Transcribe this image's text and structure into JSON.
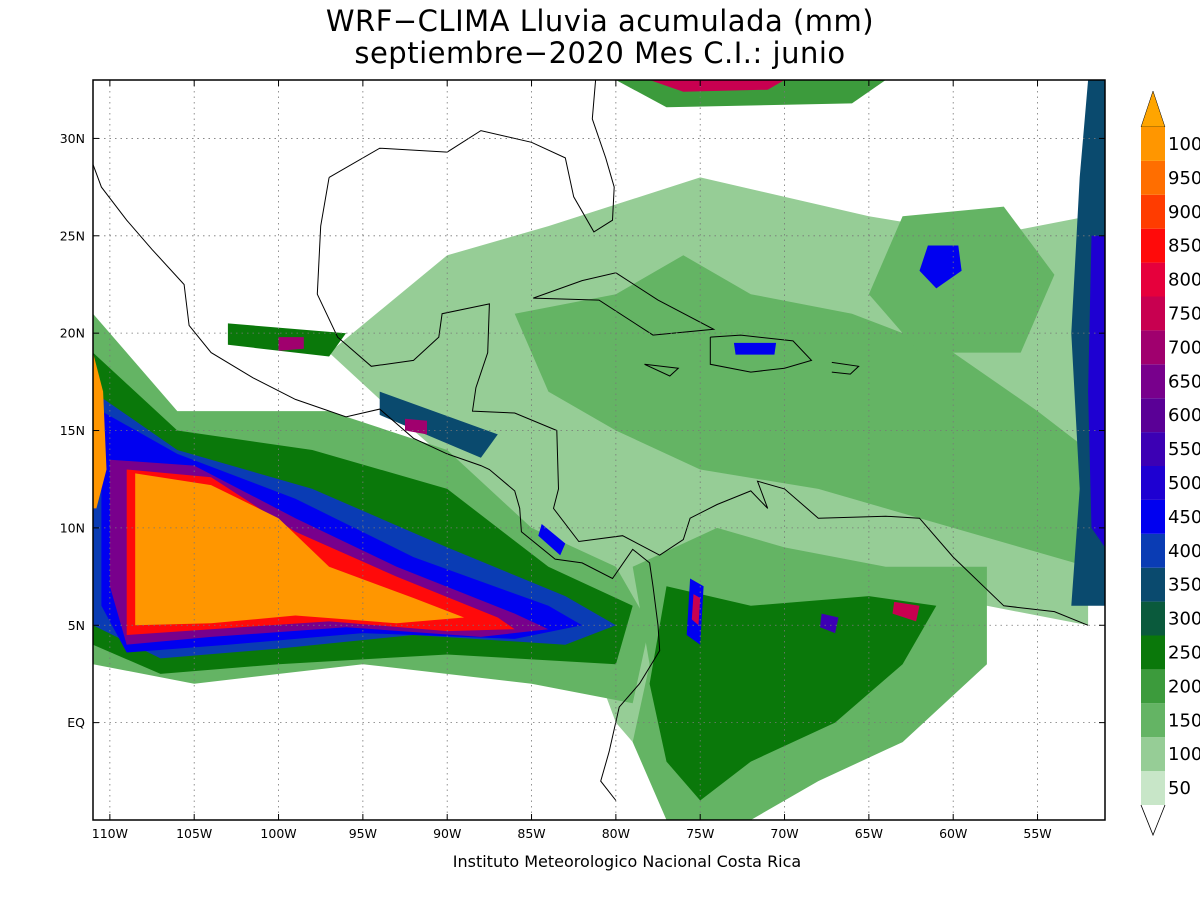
{
  "title": {
    "line1": "WRF−CLIMA Lluvia acumulada (mm)",
    "line2": "septiembre−2020 Mes C.I.: junio"
  },
  "credit": "Instituto Meteorologico Nacional Costa Rica",
  "map": {
    "lon_range": [
      -111,
      -51
    ],
    "lat_range": [
      -5,
      33
    ],
    "lat_ticks": [
      {
        "label": "30N",
        "value": 30
      },
      {
        "label": "25N",
        "value": 25
      },
      {
        "label": "20N",
        "value": 20
      },
      {
        "label": "15N",
        "value": 15
      },
      {
        "label": "10N",
        "value": 10
      },
      {
        "label": "5N",
        "value": 5
      },
      {
        "label": "EQ",
        "value": 0
      }
    ],
    "lon_ticks": [
      {
        "label": "110W",
        "value": -110
      },
      {
        "label": "105W",
        "value": -105
      },
      {
        "label": "100W",
        "value": -100
      },
      {
        "label": "95W",
        "value": -95
      },
      {
        "label": "90W",
        "value": -90
      },
      {
        "label": "85W",
        "value": -85
      },
      {
        "label": "80W",
        "value": -80
      },
      {
        "label": "75W",
        "value": -75
      },
      {
        "label": "70W",
        "value": -70
      },
      {
        "label": "65W",
        "value": -65
      },
      {
        "label": "60W",
        "value": -60
      },
      {
        "label": "55W",
        "value": -55
      }
    ]
  },
  "colorbar": {
    "levels": [
      {
        "label": "50",
        "color": "#c8e6c8"
      },
      {
        "label": "100",
        "color": "#96cd96"
      },
      {
        "label": "150",
        "color": "#64b464"
      },
      {
        "label": "200",
        "color": "#3c9b3c"
      },
      {
        "label": "250",
        "color": "#0a780a"
      },
      {
        "label": "300",
        "color": "#0a5a3c"
      },
      {
        "label": "350",
        "color": "#0a4a6e"
      },
      {
        "label": "400",
        "color": "#0a3cb4"
      },
      {
        "label": "450",
        "color": "#0000f0"
      },
      {
        "label": "500",
        "color": "#1e00d2"
      },
      {
        "label": "550",
        "color": "#3c00b4"
      },
      {
        "label": "600",
        "color": "#5a0096"
      },
      {
        "label": "650",
        "color": "#78008c"
      },
      {
        "label": "700",
        "color": "#a0006e"
      },
      {
        "label": "750",
        "color": "#c80050"
      },
      {
        "label": "800",
        "color": "#e6003c"
      },
      {
        "label": "850",
        "color": "#ff0a0a"
      },
      {
        "label": "900",
        "color": "#ff3c00"
      },
      {
        "label": "950",
        "color": "#ff6e00"
      },
      {
        "label": "1000",
        "color": "#ff9600"
      }
    ],
    "over_color": "#ffa500",
    "under_color": "#ffffff"
  },
  "fields": [
    {
      "name": "itcz-band-pacific",
      "level": 2,
      "pts": [
        [
          -111,
          21
        ],
        [
          -106,
          16
        ],
        [
          -97,
          16
        ],
        [
          -90,
          14
        ],
        [
          -85,
          10
        ],
        [
          -80,
          8
        ],
        [
          -78,
          5
        ],
        [
          -79,
          1
        ],
        [
          -85,
          2
        ],
        [
          -95,
          3
        ],
        [
          -105,
          2
        ],
        [
          -111,
          3
        ]
      ]
    },
    {
      "name": "itcz-200",
      "level": 4,
      "pts": [
        [
          -111,
          19
        ],
        [
          -106,
          15
        ],
        [
          -98,
          14
        ],
        [
          -90,
          12
        ],
        [
          -84,
          8
        ],
        [
          -79,
          6
        ],
        [
          -80,
          3
        ],
        [
          -90,
          3.5
        ],
        [
          -100,
          3
        ],
        [
          -107,
          2.5
        ],
        [
          -111,
          4
        ]
      ]
    },
    {
      "name": "itcz-350",
      "level": 7,
      "pts": [
        [
          -111,
          17
        ],
        [
          -106,
          14
        ],
        [
          -98,
          12
        ],
        [
          -90,
          9
        ],
        [
          -83,
          6.5
        ],
        [
          -80,
          5
        ],
        [
          -83,
          4
        ],
        [
          -92,
          4.5
        ],
        [
          -100,
          3.8
        ],
        [
          -107,
          3.3
        ],
        [
          -111,
          5
        ]
      ]
    },
    {
      "name": "itcz-450",
      "level": 8,
      "pts": [
        [
          -110.5,
          16
        ],
        [
          -106,
          13.8
        ],
        [
          -99,
          11.5
        ],
        [
          -92,
          8.5
        ],
        [
          -84,
          6
        ],
        [
          -82,
          5
        ],
        [
          -86,
          4.3
        ],
        [
          -95,
          4.6
        ],
        [
          -103,
          4
        ],
        [
          -109,
          3.6
        ],
        [
          -110.5,
          6
        ]
      ]
    },
    {
      "name": "itcz-650",
      "level": 12,
      "pts": [
        [
          -110,
          13.5
        ],
        [
          -105,
          13.2
        ],
        [
          -99,
          10.5
        ],
        [
          -93,
          8
        ],
        [
          -86,
          5.6
        ],
        [
          -84,
          4.8
        ],
        [
          -88,
          4.4
        ],
        [
          -96,
          4.9
        ],
        [
          -104,
          4.4
        ],
        [
          -109,
          4
        ],
        [
          -110,
          7
        ]
      ]
    },
    {
      "name": "itcz-850",
      "level": 16,
      "pts": [
        [
          -109,
          13
        ],
        [
          -104,
          12.6
        ],
        [
          -99,
          9.8
        ],
        [
          -93,
          7.5
        ],
        [
          -87,
          5.4
        ],
        [
          -86,
          4.8
        ],
        [
          -90,
          4.7
        ],
        [
          -97,
          5.2
        ],
        [
          -104,
          4.8
        ],
        [
          -109,
          4.5
        ]
      ]
    },
    {
      "name": "itcz-1000",
      "level": 19,
      "pts": [
        [
          -108.5,
          12.8
        ],
        [
          -104,
          12.2
        ],
        [
          -100,
          10.5
        ],
        [
          -97,
          8
        ],
        [
          -92,
          6.4
        ],
        [
          -89,
          5.4
        ],
        [
          -93,
          5.1
        ],
        [
          -99,
          5.5
        ],
        [
          -104,
          5.1
        ],
        [
          -108.5,
          5
        ]
      ]
    },
    {
      "name": "west-edge-max",
      "level": 19,
      "pts": [
        [
          -111,
          19
        ],
        [
          -110.4,
          17
        ],
        [
          -110.2,
          13
        ],
        [
          -110.8,
          11
        ],
        [
          -111,
          11
        ]
      ]
    },
    {
      "name": "caribbean-broad",
      "level": 1,
      "pts": [
        [
          -90,
          24
        ],
        [
          -84,
          25.5
        ],
        [
          -75,
          28
        ],
        [
          -65,
          26
        ],
        [
          -58,
          25
        ],
        [
          -52,
          26
        ],
        [
          -52,
          5
        ],
        [
          -58,
          6
        ],
        [
          -66,
          3
        ],
        [
          -70,
          -2
        ],
        [
          -75,
          -5
        ],
        [
          -80,
          0
        ],
        [
          -83,
          7
        ],
        [
          -88,
          12
        ],
        [
          -92,
          15
        ],
        [
          -97,
          19
        ]
      ]
    },
    {
      "name": "caribbean-150",
      "level": 2,
      "pts": [
        [
          -86,
          21
        ],
        [
          -80,
          22
        ],
        [
          -76,
          24
        ],
        [
          -72,
          22
        ],
        [
          -66,
          21
        ],
        [
          -60,
          19
        ],
        [
          -55,
          16
        ],
        [
          -52,
          14
        ],
        [
          -52,
          8
        ],
        [
          -60,
          10
        ],
        [
          -68,
          12
        ],
        [
          -75,
          13
        ],
        [
          -80,
          15
        ],
        [
          -84,
          17
        ]
      ]
    },
    {
      "name": "south-america-150",
      "level": 2,
      "pts": [
        [
          -79,
          8
        ],
        [
          -74,
          10
        ],
        [
          -70,
          9
        ],
        [
          -64,
          8
        ],
        [
          -58,
          8
        ],
        [
          -58,
          3
        ],
        [
          -63,
          -1
        ],
        [
          -68,
          -3
        ],
        [
          -72,
          -5
        ],
        [
          -77,
          -5
        ],
        [
          -79,
          -1
        ],
        [
          -78,
          3
        ]
      ]
    },
    {
      "name": "south-america-250",
      "level": 4,
      "pts": [
        [
          -77,
          7
        ],
        [
          -72,
          6
        ],
        [
          -65,
          6.5
        ],
        [
          -61,
          6
        ],
        [
          -63,
          3
        ],
        [
          -67,
          0
        ],
        [
          -72,
          -2
        ],
        [
          -75,
          -4
        ],
        [
          -77,
          -2
        ],
        [
          -78,
          2
        ]
      ]
    },
    {
      "name": "atlantic-east-edge",
      "level": 6,
      "pts": [
        [
          -52,
          33
        ],
        [
          -51,
          33
        ],
        [
          -51,
          6
        ],
        [
          -53,
          6
        ],
        [
          -52.5,
          12
        ],
        [
          -53,
          20
        ],
        [
          -52.5,
          28
        ]
      ]
    },
    {
      "name": "atlantic-east-max",
      "level": 9,
      "pts": [
        [
          -51.8,
          25
        ],
        [
          -51,
          25
        ],
        [
          -51,
          9
        ],
        [
          -51.8,
          10
        ],
        [
          -52,
          17
        ]
      ]
    },
    {
      "name": "atlantic-north-east",
      "level": 2,
      "pts": [
        [
          -63,
          26
        ],
        [
          -57,
          26.5
        ],
        [
          -54,
          23
        ],
        [
          -56,
          19
        ],
        [
          -62,
          19
        ],
        [
          -65,
          22
        ]
      ]
    },
    {
      "name": "atlantic-north-east-core",
      "level": 8,
      "pts": [
        [
          -61.5,
          24.5
        ],
        [
          -59.7,
          24.5
        ],
        [
          -59.5,
          23.2
        ],
        [
          -61,
          22.3
        ],
        [
          -62,
          23.2
        ]
      ]
    },
    {
      "name": "north-edge-red",
      "level": 14,
      "pts": [
        [
          -78,
          33
        ],
        [
          -70,
          33
        ],
        [
          -71,
          32.5
        ],
        [
          -76,
          32.4
        ]
      ]
    },
    {
      "name": "north-edge-green",
      "level": 3,
      "pts": [
        [
          -80,
          33
        ],
        [
          -64,
          33
        ],
        [
          -66,
          31.8
        ],
        [
          -77,
          31.6
        ]
      ]
    },
    {
      "name": "mexico-gulf-cell",
      "level": 13,
      "pts": [
        [
          -100,
          19.8
        ],
        [
          -98.5,
          19.8
        ],
        [
          -98.5,
          19.2
        ],
        [
          -100,
          19.1
        ]
      ]
    },
    {
      "name": "mexico-gulf-band",
      "level": 4,
      "pts": [
        [
          -103,
          20.5
        ],
        [
          -96,
          20
        ],
        [
          -97,
          18.8
        ],
        [
          -103,
          19.4
        ]
      ]
    },
    {
      "name": "guatemala-cell",
      "level": 13,
      "pts": [
        [
          -92.5,
          15.6
        ],
        [
          -91.2,
          15.5
        ],
        [
          -91.2,
          14.8
        ],
        [
          -92.5,
          15
        ]
      ]
    },
    {
      "name": "honduras-band",
      "level": 6,
      "pts": [
        [
          -94,
          17
        ],
        [
          -87,
          14.8
        ],
        [
          -88,
          13.6
        ],
        [
          -94,
          15.8
        ]
      ]
    },
    {
      "name": "costa-rica-cell",
      "level": 8,
      "pts": [
        [
          -84.4,
          10.2
        ],
        [
          -83,
          9.2
        ],
        [
          -83.3,
          8.6
        ],
        [
          -84.6,
          9.6
        ]
      ]
    },
    {
      "name": "colombia-col1",
      "level": 8,
      "pts": [
        [
          -75.6,
          7.4
        ],
        [
          -74.8,
          7
        ],
        [
          -75,
          4
        ],
        [
          -75.8,
          4.5
        ]
      ]
    },
    {
      "name": "colombia-col1-core",
      "level": 14,
      "pts": [
        [
          -75.4,
          6.6
        ],
        [
          -75,
          6.4
        ],
        [
          -75.1,
          5
        ],
        [
          -75.5,
          5.3
        ]
      ]
    },
    {
      "name": "venezuela-cell",
      "level": 14,
      "pts": [
        [
          -63.5,
          6.2
        ],
        [
          -62,
          6
        ],
        [
          -62.2,
          5.2
        ],
        [
          -63.6,
          5.6
        ]
      ]
    },
    {
      "name": "venezuela-cell2",
      "level": 10,
      "pts": [
        [
          -67.8,
          5.6
        ],
        [
          -66.8,
          5.4
        ],
        [
          -67,
          4.6
        ],
        [
          -67.9,
          4.9
        ]
      ]
    },
    {
      "name": "hispaniola-cell",
      "level": 8,
      "pts": [
        [
          -73,
          19.5
        ],
        [
          -70.5,
          19.5
        ],
        [
          -70.6,
          18.9
        ],
        [
          -72.9,
          18.9
        ]
      ]
    }
  ]
}
